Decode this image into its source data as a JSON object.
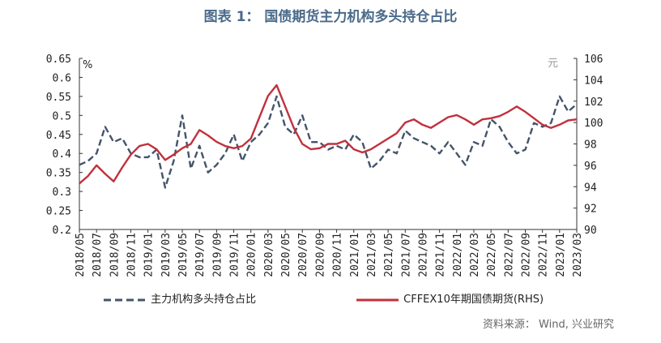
{
  "title": "图表 1： 国债期货主力机构多头持仓占比",
  "source": "资料来源： Wind, 兴业研究",
  "colors": {
    "series_left": "#44546a",
    "series_right": "#c0313d",
    "title": "#4a6a8a"
  },
  "chart_data": {
    "type": "line",
    "title": "图表 1： 国债期货主力机构多头持仓占比",
    "y_left": {
      "unit": "%",
      "ticks": [
        "0.2",
        "0.25",
        "0.3",
        "0.35",
        "0.4",
        "0.45",
        "0.5",
        "0.55",
        "0.6",
        "0.65"
      ],
      "ylim": [
        0.2,
        0.65
      ]
    },
    "y_right": {
      "unit": "元",
      "ticks": [
        "90",
        "92",
        "94",
        "96",
        "98",
        "100",
        "102",
        "104",
        "106"
      ],
      "ylim": [
        90,
        106
      ]
    },
    "x_ticks": [
      "2018/05",
      "2018/07",
      "2018/09",
      "2018/11",
      "2019/01",
      "2019/03",
      "2019/05",
      "2019/07",
      "2019/09",
      "2019/11",
      "2020/01",
      "2020/03",
      "2020/05",
      "2020/07",
      "2020/09",
      "2020/11",
      "2021/01",
      "2021/03",
      "2021/05",
      "2021/07",
      "2021/09",
      "2021/11",
      "2022/01",
      "2022/03",
      "2022/05",
      "2022/07",
      "2022/09",
      "2022/11",
      "2023/01",
      "2023/03"
    ],
    "legend_position": "bottom",
    "grid": false,
    "series": [
      {
        "name": "主力机构多头持仓占比",
        "axis": "left",
        "style": "dashed",
        "x": [
          "2018/05",
          "2018/06",
          "2018/07",
          "2018/08",
          "2018/09",
          "2018/10",
          "2018/11",
          "2018/12",
          "2019/01",
          "2019/02",
          "2019/03",
          "2019/04",
          "2019/05",
          "2019/06",
          "2019/07",
          "2019/08",
          "2019/09",
          "2019/10",
          "2019/11",
          "2019/12",
          "2020/01",
          "2020/02",
          "2020/03",
          "2020/04",
          "2020/05",
          "2020/06",
          "2020/07",
          "2020/08",
          "2020/09",
          "2020/10",
          "2020/11",
          "2020/12",
          "2021/01",
          "2021/02",
          "2021/03",
          "2021/04",
          "2021/05",
          "2021/06",
          "2021/07",
          "2021/08",
          "2021/09",
          "2021/10",
          "2021/11",
          "2021/12",
          "2022/01",
          "2022/02",
          "2022/03",
          "2022/04",
          "2022/05",
          "2022/06",
          "2022/07",
          "2022/08",
          "2022/09",
          "2022/10",
          "2022/11",
          "2022/12",
          "2023/01",
          "2023/02",
          "2023/03"
        ],
        "values": [
          0.37,
          0.38,
          0.4,
          0.47,
          0.43,
          0.44,
          0.4,
          0.39,
          0.39,
          0.41,
          0.31,
          0.38,
          0.5,
          0.36,
          0.42,
          0.35,
          0.37,
          0.4,
          0.45,
          0.38,
          0.43,
          0.45,
          0.48,
          0.55,
          0.47,
          0.45,
          0.5,
          0.43,
          0.43,
          0.41,
          0.42,
          0.41,
          0.45,
          0.43,
          0.36,
          0.38,
          0.41,
          0.4,
          0.46,
          0.44,
          0.43,
          0.42,
          0.4,
          0.43,
          0.4,
          0.37,
          0.43,
          0.42,
          0.49,
          0.47,
          0.43,
          0.4,
          0.41,
          0.48,
          0.47,
          0.48,
          0.55,
          0.51,
          0.53
        ]
      },
      {
        "name": "CFFEX10年期国债期货(RHS)",
        "axis": "right",
        "style": "solid",
        "x": [
          "2018/05",
          "2018/06",
          "2018/07",
          "2018/08",
          "2018/09",
          "2018/10",
          "2018/11",
          "2018/12",
          "2019/01",
          "2019/02",
          "2019/03",
          "2019/04",
          "2019/05",
          "2019/06",
          "2019/07",
          "2019/08",
          "2019/09",
          "2019/10",
          "2019/11",
          "2019/12",
          "2020/01",
          "2020/02",
          "2020/03",
          "2020/04",
          "2020/05",
          "2020/06",
          "2020/07",
          "2020/08",
          "2020/09",
          "2020/10",
          "2020/11",
          "2020/12",
          "2021/01",
          "2021/02",
          "2021/03",
          "2021/04",
          "2021/05",
          "2021/06",
          "2021/07",
          "2021/08",
          "2021/09",
          "2021/10",
          "2021/11",
          "2021/12",
          "2022/01",
          "2022/02",
          "2022/03",
          "2022/04",
          "2022/05",
          "2022/06",
          "2022/07",
          "2022/08",
          "2022/09",
          "2022/10",
          "2022/11",
          "2022/12",
          "2023/01",
          "2023/02",
          "2023/03"
        ],
        "values": [
          94.3,
          95.0,
          96.0,
          95.2,
          94.5,
          95.8,
          97.0,
          97.8,
          98.0,
          97.5,
          96.5,
          97.0,
          97.6,
          98.0,
          99.3,
          98.8,
          98.2,
          97.8,
          97.6,
          97.8,
          98.5,
          100.5,
          102.5,
          103.5,
          101.5,
          99.5,
          98.0,
          97.5,
          97.6,
          98.0,
          98.0,
          98.3,
          97.5,
          97.2,
          97.5,
          98.0,
          98.5,
          99.0,
          100.0,
          100.3,
          99.8,
          99.5,
          100.0,
          100.5,
          100.7,
          100.3,
          99.8,
          100.3,
          100.4,
          100.6,
          101.0,
          101.5,
          101.0,
          100.4,
          99.8,
          99.5,
          99.8,
          100.2,
          100.3
        ]
      }
    ]
  }
}
